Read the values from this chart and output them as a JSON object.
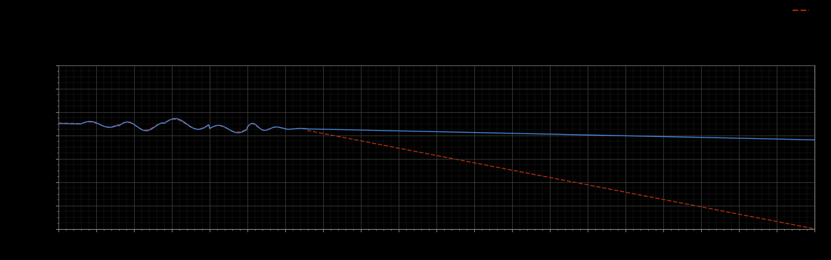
{
  "background_color": "#000000",
  "plot_bg_color": "#000000",
  "grid_color": "#4a4a4a",
  "blue_line_color": "#4488dd",
  "red_line_color": "#cc3311",
  "figsize": [
    12.09,
    3.78
  ],
  "dpi": 100,
  "legend_blue_label": "",
  "legend_red_label": "",
  "spine_color": "#888888",
  "tick_color": "#888888"
}
